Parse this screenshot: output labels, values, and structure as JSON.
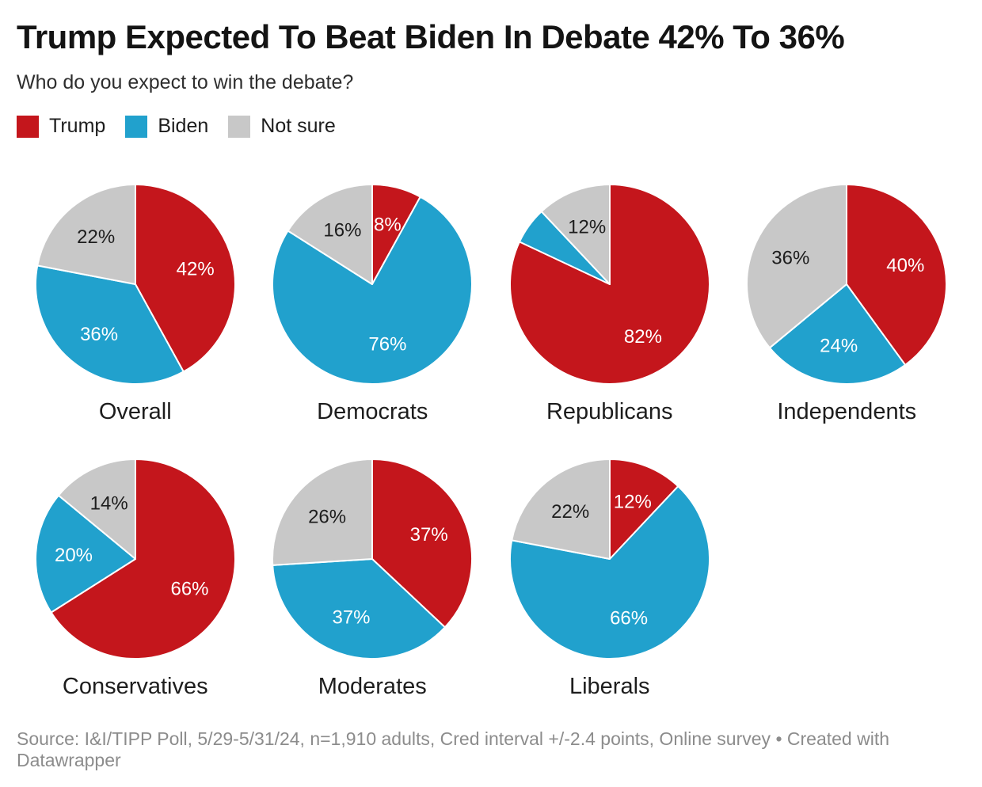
{
  "header": {
    "title": "Trump Expected To Beat Biden In Debate 42% To 36%",
    "subtitle": "Who do you expect to win the debate?"
  },
  "legend": {
    "items": [
      {
        "label": "Trump",
        "color": "#c4161c"
      },
      {
        "label": "Biden",
        "color": "#21a1cd"
      },
      {
        "label": "Not sure",
        "color": "#c8c8c8"
      }
    ]
  },
  "footer": {
    "source": "Source: I&I/TIPP Poll, 5/29-5/31/24, n=1,910 adults, Cred interval +/-2.4 points, Online survey • Created with Datawrapper"
  },
  "chart_data": {
    "type": "pie",
    "title": "Trump Expected To Beat Biden In Debate 42% To 36%",
    "subtitle": "Who do you expect to win the debate?",
    "series_labels": [
      "Trump",
      "Biden",
      "Not sure"
    ],
    "series_colors": [
      "#c4161c",
      "#21a1cd",
      "#c8c8c8"
    ],
    "slice_label_colors": [
      "#ffffff",
      "#ffffff",
      "#1d1d1d"
    ],
    "unit": "%",
    "pies": [
      {
        "category": "Overall",
        "values": [
          42,
          36,
          22
        ],
        "slice_labels": [
          "42%",
          "36%",
          "22%"
        ]
      },
      {
        "category": "Democrats",
        "values": [
          8,
          76,
          16
        ],
        "slice_labels": [
          "8%",
          "76%",
          "16%"
        ]
      },
      {
        "category": "Republicans",
        "values": [
          82,
          6,
          12
        ],
        "slice_labels": [
          "82%",
          "",
          "12%"
        ]
      },
      {
        "category": "Independents",
        "values": [
          40,
          24,
          36
        ],
        "slice_labels": [
          "40%",
          "24%",
          "36%"
        ]
      },
      {
        "category": "Conservatives",
        "values": [
          66,
          20,
          14
        ],
        "slice_labels": [
          "66%",
          "20%",
          "14%"
        ]
      },
      {
        "category": "Moderates",
        "values": [
          37,
          37,
          26
        ],
        "slice_labels": [
          "37%",
          "37%",
          "26%"
        ]
      },
      {
        "category": "Liberals",
        "values": [
          12,
          66,
          22
        ],
        "slice_labels": [
          "12%",
          "66%",
          "22%"
        ]
      }
    ],
    "layout": {
      "rows": [
        4,
        3
      ],
      "start_angle_deg": 0,
      "direction": "clockwise",
      "legend_position": "top-left",
      "label_radius_fraction": 0.62
    }
  }
}
